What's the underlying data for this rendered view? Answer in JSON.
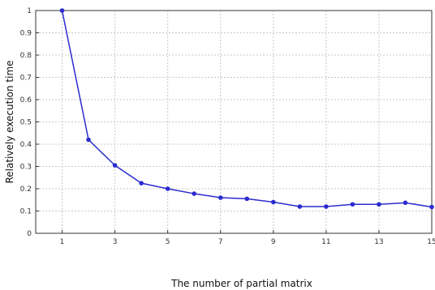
{
  "chart_data": {
    "type": "line",
    "title": "",
    "xlabel": "The number of partial matrix",
    "ylabel": "Relatively  execution time",
    "xlim": [
      0,
      15
    ],
    "ylim": [
      0,
      1
    ],
    "xticks": [
      1,
      3,
      5,
      7,
      9,
      11,
      13,
      15
    ],
    "yticks": [
      0,
      0.1,
      0.2,
      0.3,
      0.4,
      0.5,
      0.6,
      0.7,
      0.8,
      0.9,
      1
    ],
    "grid": true,
    "legend": "none",
    "series": [
      {
        "color": "#2b2bd0",
        "marker": "circle",
        "x": [
          1,
          2,
          3,
          4,
          5,
          6,
          7,
          8,
          9,
          10,
          11,
          12,
          13,
          14,
          15
        ],
        "y": [
          1.0,
          0.42,
          0.305,
          0.225,
          0.2,
          0.178,
          0.16,
          0.155,
          0.14,
          0.12,
          0.12,
          0.13,
          0.13,
          0.137,
          0.118
        ]
      }
    ]
  }
}
